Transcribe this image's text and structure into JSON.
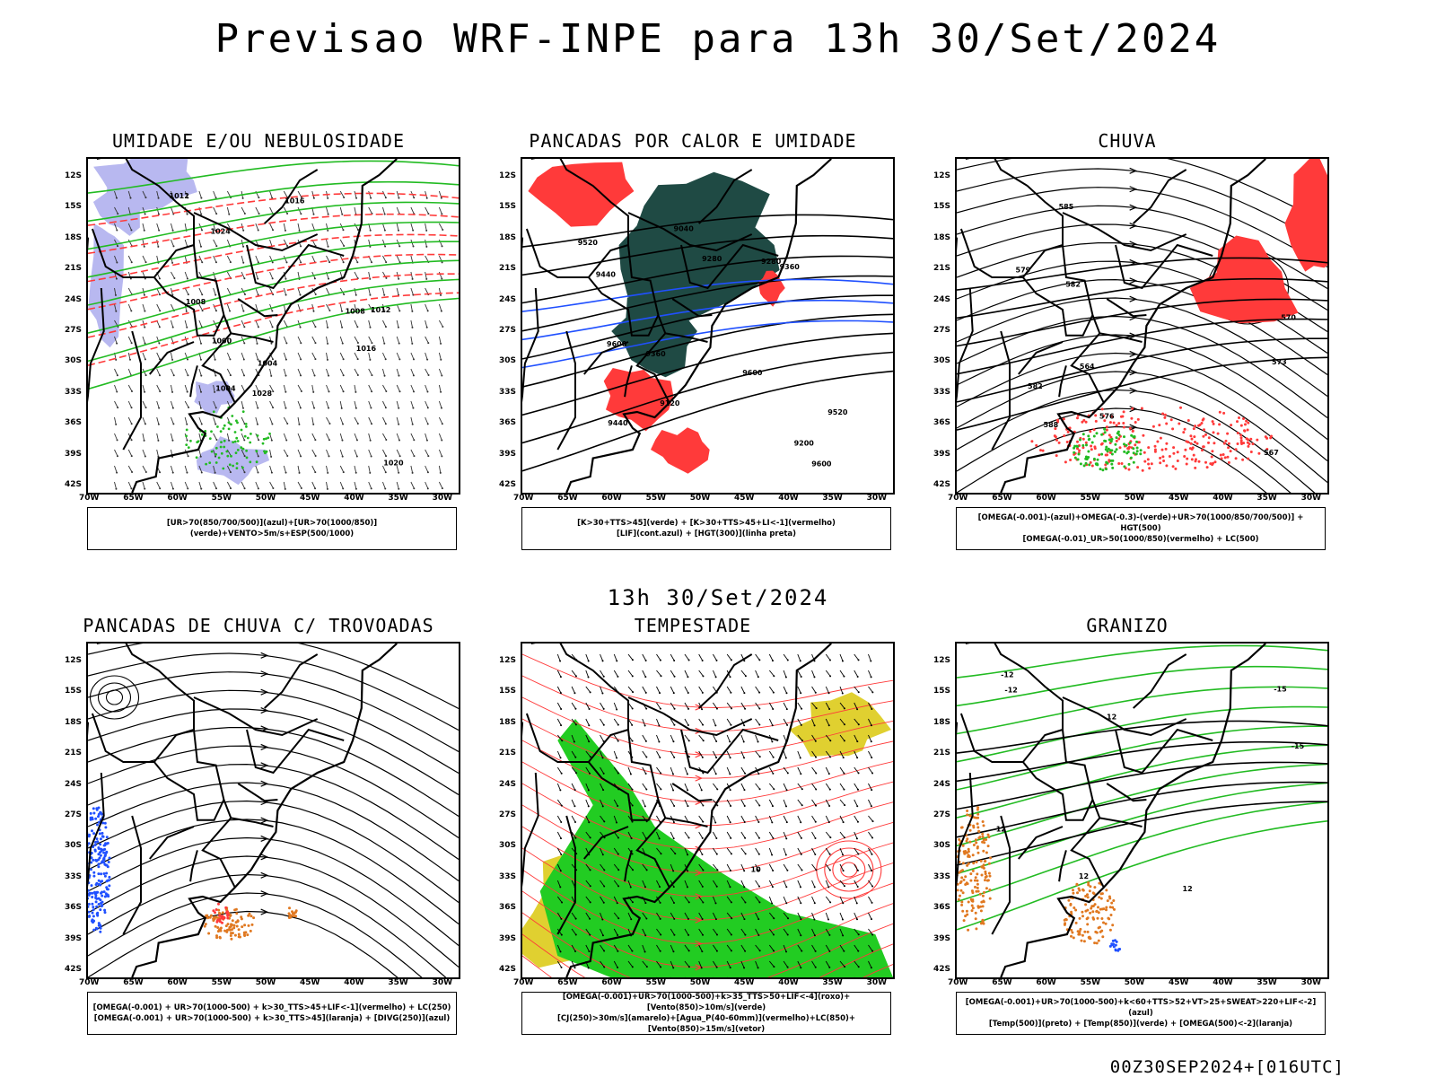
{
  "title": "Previsao WRF-INPE  para 13h 30/Set/2024",
  "subtitle": "13h 30/Set/2024",
  "footer": "00Z30SEP2024+[016UTC]",
  "axes": {
    "lat_labels": [
      "12S",
      "15S",
      "18S",
      "21S",
      "24S",
      "27S",
      "30S",
      "33S",
      "36S",
      "39S",
      "42S"
    ],
    "lon_labels": [
      "70W",
      "65W",
      "60W",
      "55W",
      "50W",
      "45W",
      "40W",
      "35W",
      "30W"
    ]
  },
  "colors": {
    "humidity_blue": "#b8b8f0",
    "wind_green": "#22bb22",
    "red": "#ff3a3a",
    "dark_teal": "#1f4a44",
    "green_fill": "#22cc22",
    "yellow": "#e0d030",
    "orange": "#e07820",
    "blue": "#2050ff"
  },
  "panels": [
    {
      "title": "UMIDADE E/OU NEBULOSIDADE",
      "legend": [
        "[UR>70(850/700/500)](azul)+[UR>70(1000/850)](verde)+VENTO>5m/s+ESP(500/1000)"
      ],
      "contour_labels": [
        "1004",
        "1008",
        "1012",
        "1016",
        "1020",
        "1024",
        "1028",
        "1000",
        "1004",
        "1008",
        "1012",
        "1016"
      ]
    },
    {
      "title": "PANCADAS POR CALOR E UMIDADE",
      "legend": [
        "[K>30+TTS>45](verde) + [K>30+TTS>45+LI<-1](vermelho)",
        "[LIF](cont.azul) + [HGT(300)](linha preta)"
      ],
      "contour_labels": [
        "9600",
        "9600",
        "9600",
        "9520",
        "9520",
        "9440",
        "9440",
        "9360",
        "9360",
        "9280",
        "9280",
        "9200",
        "9120",
        "9040"
      ]
    },
    {
      "title": "CHUVA",
      "legend": [
        "[OMEGA(-0.001)-(azul)+OMEGA(-0.3)-(verde)+UR>70(1000/850/700/500)] + HGT(500)",
        "[OMEGA(-0.01)_UR>50(1000/850)(vermelho) + LC(500)"
      ],
      "contour_labels": [
        "582",
        "582",
        "579",
        "576",
        "573",
        "570",
        "567",
        "564",
        "588",
        "585"
      ]
    },
    {
      "title": "PANCADAS DE CHUVA C/ TROVOADAS",
      "legend": [
        "[OMEGA(-0.001) + UR>70(1000-500) + k>30_TTS>45+LIF<-1](vermelho) + LC(250)",
        "[OMEGA(-0.001) + UR>70(1000-500) + k>30_TTS>45](laranja) + [DIVG(250)](azul)"
      ],
      "contour_labels": []
    },
    {
      "title": "TEMPESTADE",
      "legend": [
        "[OMEGA(-0.001)+UR>70(1000-500)+k>35_TTS>50+LIF<-4](roxo)+[Vento(850)>10m/s](verde)",
        "[CJ(250)>30m/s](amarelo)+[Agua_P(40-60mm)](vermelho)+LC(850)+[Vento(850)>15m/s](vetor)"
      ],
      "contour_labels": [
        "10"
      ]
    },
    {
      "title": "GRANIZO",
      "legend": [
        "[OMEGA(-0.001)+UR>70(1000-500)+k<60+TTS>52+VT>25+SWEAT>220+LIF<-2](azul)",
        "[Temp(500)](preto) + [Temp(850)](verde) + [OMEGA(500)<-2](laranja)"
      ],
      "contour_labels": [
        "-12",
        "-12",
        "-12",
        "-15",
        "-15",
        "12",
        "12",
        "12"
      ]
    }
  ]
}
